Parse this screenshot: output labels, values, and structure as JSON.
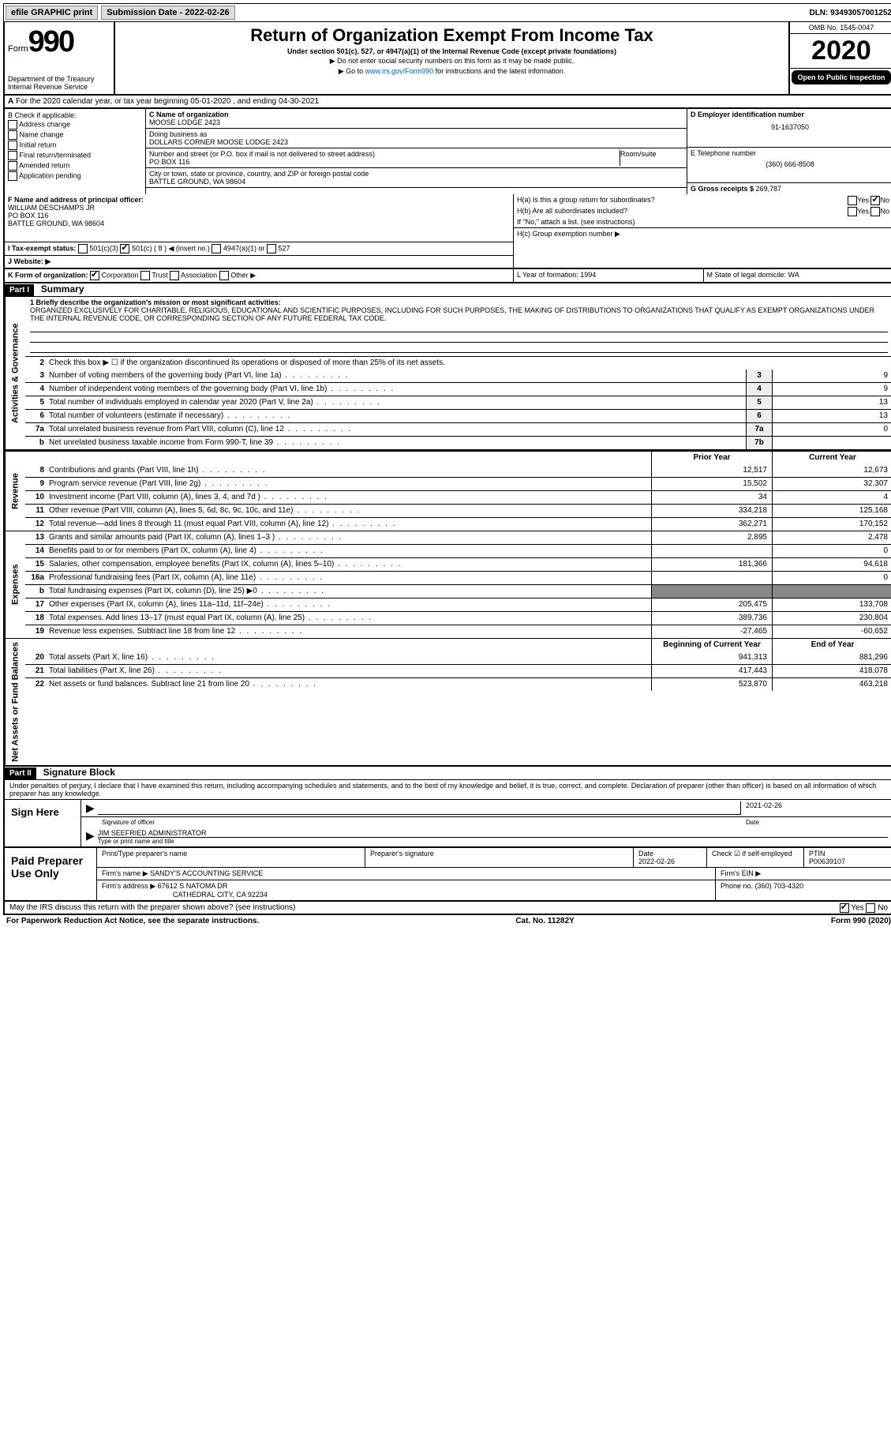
{
  "top": {
    "efile": "efile GRAPHIC print",
    "submission": "Submission Date - 2022-02-26",
    "dln": "DLN: 93493057001252"
  },
  "header": {
    "form_word": "Form",
    "form_num": "990",
    "dept": "Department of the Treasury",
    "irs": "Internal Revenue Service",
    "title": "Return of Organization Exempt From Income Tax",
    "subtitle": "Under section 501(c), 527, or 4947(a)(1) of the Internal Revenue Code (except private foundations)",
    "note1": "▶ Do not enter social security numbers on this form as it may be made public.",
    "note2": "▶ Go to ",
    "link": "www.irs.gov/Form990",
    "note2b": " for instructions and the latest information.",
    "omb": "OMB No. 1545-0047",
    "year": "2020",
    "open": "Open to Public Inspection"
  },
  "rowA": "For the 2020 calendar year, or tax year beginning 05-01-2020   , and ending 04-30-2021",
  "B": {
    "label": "B Check if applicable:",
    "items": [
      "Address change",
      "Name change",
      "Initial return",
      "Final return/terminated",
      "Amended return",
      "Application pending"
    ]
  },
  "C": {
    "label": "C Name of organization",
    "name": "MOOSE LODGE 2423",
    "dba_label": "Doing business as",
    "dba": "DOLLARS CORNER MOOSE LODGE 2423",
    "street_label": "Number and street (or P.O. box if mail is not delivered to street address)",
    "room_label": "Room/suite",
    "street": "PO BOX 116",
    "city_label": "City or town, state or province, country, and ZIP or foreign postal code",
    "city": "BATTLE GROUND, WA  98604"
  },
  "D": {
    "label": "D Employer identification number",
    "ein": "91-1637050",
    "phone_label": "E Telephone number",
    "phone": "(360) 666-8508",
    "gross_label": "G Gross receipts $",
    "gross": "269,787"
  },
  "F": {
    "label": "F  Name and address of principal officer:",
    "name": "WILLIAM DESCHAMPS JR",
    "addr1": "PO BOX 116",
    "addr2": "BATTLE GROUND, WA  98604"
  },
  "H": {
    "a": "H(a)  Is this a group return for subordinates?",
    "b": "H(b)  Are all subordinates included?",
    "b_note": "If \"No,\" attach a list. (see instructions)",
    "c": "H(c)  Group exemption number ▶"
  },
  "I": {
    "label": "I   Tax-exempt status:",
    "opt1": "501(c)(3)",
    "opt2": "501(c) ( 8 ) ◀ (insert no.)",
    "opt3": "4947(a)(1) or",
    "opt4": "527"
  },
  "J": "J  Website: ▶",
  "K": {
    "label": "K Form of organization:",
    "opts": [
      "Corporation",
      "Trust",
      "Association",
      "Other ▶"
    ]
  },
  "L": "L Year of formation: 1994",
  "M": "M State of legal domicile: WA",
  "partI": {
    "title": "Part I",
    "subtitle": "Summary",
    "mission_label": "1  Briefly describe the organization's mission or most significant activities:",
    "mission": "ORGANIZED EXCLUSIVELY FOR CHARITABLE, RELIGIOUS, EDUCATIONAL AND SCIENTIFIC PURPOSES, INCLUDING FOR SUCH PURPOSES, THE MAKING OF DISTRIBUTIONS TO ORGANIZATIONS THAT QUALIFY AS EXEMPT ORGANIZATIONS UNDER THE INTERNAL REVENUE CODE, OR CORRESPONDING SECTION OF ANY FUTURE FEDERAL TAX CODE."
  },
  "governance": {
    "tab": "Activities & Governance",
    "r2": "Check this box ▶ ☐ if the organization discontinued its operations or disposed of more than 25% of its net assets.",
    "rows": [
      {
        "n": "3",
        "t": "Number of voting members of the governing body (Part VI, line 1a)",
        "b": "3",
        "v": "9"
      },
      {
        "n": "4",
        "t": "Number of independent voting members of the governing body (Part VI, line 1b)",
        "b": "4",
        "v": "9"
      },
      {
        "n": "5",
        "t": "Total number of individuals employed in calendar year 2020 (Part V, line 2a)",
        "b": "5",
        "v": "13"
      },
      {
        "n": "6",
        "t": "Total number of volunteers (estimate if necessary)",
        "b": "6",
        "v": "13"
      },
      {
        "n": "7a",
        "t": "Total unrelated business revenue from Part VIII, column (C), line 12",
        "b": "7a",
        "v": "0"
      },
      {
        "n": "b",
        "t": "Net unrelated business taxable income from Form 990-T, line 39",
        "b": "7b",
        "v": ""
      }
    ]
  },
  "revenue": {
    "tab": "Revenue",
    "header": {
      "py": "Prior Year",
      "cy": "Current Year"
    },
    "rows": [
      {
        "n": "8",
        "t": "Contributions and grants (Part VIII, line 1h)",
        "py": "12,517",
        "cy": "12,673"
      },
      {
        "n": "9",
        "t": "Program service revenue (Part VIII, line 2g)",
        "py": "15,502",
        "cy": "32,307"
      },
      {
        "n": "10",
        "t": "Investment income (Part VIII, column (A), lines 3, 4, and 7d )",
        "py": "34",
        "cy": "4"
      },
      {
        "n": "11",
        "t": "Other revenue (Part VIII, column (A), lines 5, 6d, 8c, 9c, 10c, and 11e)",
        "py": "334,218",
        "cy": "125,168"
      },
      {
        "n": "12",
        "t": "Total revenue—add lines 8 through 11 (must equal Part VIII, column (A), line 12)",
        "py": "362,271",
        "cy": "170,152"
      }
    ]
  },
  "expenses": {
    "tab": "Expenses",
    "rows": [
      {
        "n": "13",
        "t": "Grants and similar amounts paid (Part IX, column (A), lines 1–3 )",
        "py": "2,895",
        "cy": "2,478"
      },
      {
        "n": "14",
        "t": "Benefits paid to or for members (Part IX, column (A), line 4)",
        "py": "",
        "cy": "0"
      },
      {
        "n": "15",
        "t": "Salaries, other compensation, employee benefits (Part IX, column (A), lines 5–10)",
        "py": "181,366",
        "cy": "94,618"
      },
      {
        "n": "16a",
        "t": "Professional fundraising fees (Part IX, column (A), line 11e)",
        "py": "",
        "cy": "0"
      },
      {
        "n": "b",
        "t": "Total fundraising expenses (Part IX, column (D), line 25) ▶0",
        "py": "",
        "cy": "",
        "noval": true
      },
      {
        "n": "17",
        "t": "Other expenses (Part IX, column (A), lines 11a–11d, 11f–24e)",
        "py": "205,475",
        "cy": "133,708"
      },
      {
        "n": "18",
        "t": "Total expenses. Add lines 13–17 (must equal Part IX, column (A), line 25)",
        "py": "389,736",
        "cy": "230,804"
      },
      {
        "n": "19",
        "t": "Revenue less expenses. Subtract line 18 from line 12",
        "py": "-27,465",
        "cy": "-60,652"
      }
    ]
  },
  "netassets": {
    "tab": "Net Assets or Fund Balances",
    "header": {
      "py": "Beginning of Current Year",
      "cy": "End of Year"
    },
    "rows": [
      {
        "n": "20",
        "t": "Total assets (Part X, line 16)",
        "py": "941,313",
        "cy": "881,296"
      },
      {
        "n": "21",
        "t": "Total liabilities (Part X, line 26)",
        "py": "417,443",
        "cy": "418,078"
      },
      {
        "n": "22",
        "t": "Net assets or fund balances. Subtract line 21 from line 20",
        "py": "523,870",
        "cy": "463,218"
      }
    ]
  },
  "partII": {
    "title": "Part II",
    "subtitle": "Signature Block",
    "declare": "Under penalties of perjury, I declare that I have examined this return, including accompanying schedules and statements, and to the best of my knowledge and belief, it is true, correct, and complete. Declaration of preparer (other than officer) is based on all information of which preparer has any knowledge."
  },
  "sign": {
    "side": "Sign Here",
    "sig_label": "Signature of officer",
    "date": "2021-02-26",
    "date_label": "Date",
    "name": "JIM SEEFRIED  ADMINISTRATOR",
    "name_label": "Type or print name and title"
  },
  "paid": {
    "side": "Paid Preparer Use Only",
    "h1": "Print/Type preparer's name",
    "h2": "Preparer's signature",
    "h3": "Date",
    "date": "2022-02-26",
    "h4": "Check ☑ if self-employed",
    "h5": "PTIN",
    "ptin": "P00639107",
    "firm_label": "Firm's name    ▶",
    "firm": "SANDY'S ACCOUNTING SERVICE",
    "ein_label": "Firm's EIN ▶",
    "addr_label": "Firm's address ▶",
    "addr1": "67612 S NATOMA DR",
    "addr2": "CATHEDRAL CITY, CA  92234",
    "phone_label": "Phone no.",
    "phone": "(360) 703-4320",
    "discuss": "May the IRS discuss this return with the preparer shown above? (see instructions)",
    "yes": "Yes",
    "no": "No"
  },
  "footer": {
    "left": "For Paperwork Reduction Act Notice, see the separate instructions.",
    "mid": "Cat. No. 11282Y",
    "right": "Form 990 (2020)"
  }
}
